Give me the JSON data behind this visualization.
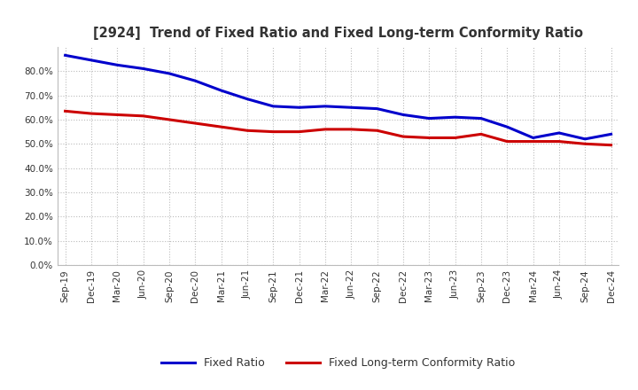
{
  "title": "[2924]  Trend of Fixed Ratio and Fixed Long-term Conformity Ratio",
  "x_labels": [
    "Sep-19",
    "Dec-19",
    "Mar-20",
    "Jun-20",
    "Sep-20",
    "Dec-20",
    "Mar-21",
    "Jun-21",
    "Sep-21",
    "Dec-21",
    "Mar-22",
    "Jun-22",
    "Sep-22",
    "Dec-22",
    "Mar-23",
    "Jun-23",
    "Sep-23",
    "Dec-23",
    "Mar-24",
    "Jun-24",
    "Sep-24",
    "Dec-24"
  ],
  "fixed_ratio": [
    86.5,
    84.5,
    82.5,
    81.0,
    79.0,
    76.0,
    72.0,
    68.5,
    65.5,
    65.0,
    65.5,
    65.0,
    64.5,
    62.0,
    60.5,
    61.0,
    60.5,
    57.0,
    52.5,
    54.5,
    52.0,
    54.0
  ],
  "fixed_lt_ratio": [
    63.5,
    62.5,
    62.0,
    61.5,
    60.0,
    58.5,
    57.0,
    55.5,
    55.0,
    55.0,
    56.0,
    56.0,
    55.5,
    53.0,
    52.5,
    52.5,
    54.0,
    51.0,
    51.0,
    51.0,
    50.0,
    49.5
  ],
  "fixed_ratio_color": "#0000cc",
  "fixed_lt_ratio_color": "#cc0000",
  "ylim": [
    0,
    90
  ],
  "yticks": [
    0,
    10,
    20,
    30,
    40,
    50,
    60,
    70,
    80
  ],
  "background_color": "#ffffff",
  "grid_color": "#bbbbbb",
  "line_width": 2.2,
  "title_color": "#333333"
}
